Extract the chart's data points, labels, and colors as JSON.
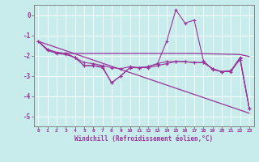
{
  "bg_color": "#c8ecec",
  "line_color": "#993399",
  "grid_color": "#ffffff",
  "xlim": [
    -0.5,
    23.5
  ],
  "ylim": [
    -5.5,
    0.5
  ],
  "yticks": [
    0,
    -1,
    -2,
    -3,
    -4,
    -5
  ],
  "xticks": [
    0,
    1,
    2,
    3,
    4,
    5,
    6,
    7,
    8,
    9,
    10,
    11,
    12,
    13,
    14,
    15,
    16,
    17,
    18,
    19,
    20,
    21,
    22,
    23
  ],
  "xlabel": "Windchill (Refroidissement éolien,°C)",
  "series_main": [
    [
      0,
      -1.3
    ],
    [
      1,
      -1.7
    ],
    [
      2,
      -1.85
    ],
    [
      3,
      -1.9
    ],
    [
      4,
      -2.1
    ],
    [
      5,
      -2.5
    ],
    [
      6,
      -2.5
    ],
    [
      7,
      -2.55
    ],
    [
      8,
      -3.35
    ],
    [
      9,
      -3.0
    ],
    [
      10,
      -2.6
    ],
    [
      11,
      -2.6
    ],
    [
      12,
      -2.55
    ],
    [
      13,
      -2.4
    ],
    [
      14,
      -1.3
    ],
    [
      15,
      0.25
    ],
    [
      16,
      -0.4
    ],
    [
      17,
      -0.25
    ],
    [
      18,
      -2.25
    ],
    [
      19,
      -2.7
    ],
    [
      20,
      -2.8
    ],
    [
      21,
      -2.8
    ],
    [
      22,
      -2.15
    ],
    [
      23,
      -4.6
    ]
  ],
  "series_diag": [
    [
      0,
      -1.3
    ],
    [
      23,
      -4.85
    ]
  ],
  "series_flat": [
    [
      0,
      -1.3
    ],
    [
      1,
      -1.7
    ],
    [
      2,
      -1.85
    ],
    [
      3,
      -1.9
    ],
    [
      7,
      -1.9
    ],
    [
      8,
      -1.9
    ],
    [
      17,
      -1.9
    ],
    [
      22,
      -1.95
    ],
    [
      23,
      -2.05
    ]
  ],
  "series_mid": [
    [
      0,
      -1.3
    ],
    [
      1,
      -1.75
    ],
    [
      2,
      -1.9
    ],
    [
      3,
      -1.95
    ],
    [
      4,
      -2.1
    ],
    [
      5,
      -2.35
    ],
    [
      6,
      -2.4
    ],
    [
      7,
      -2.5
    ],
    [
      8,
      -2.6
    ],
    [
      9,
      -2.65
    ],
    [
      10,
      -2.55
    ],
    [
      11,
      -2.6
    ],
    [
      12,
      -2.6
    ],
    [
      13,
      -2.5
    ],
    [
      14,
      -2.4
    ],
    [
      15,
      -2.3
    ],
    [
      16,
      -2.3
    ],
    [
      17,
      -2.35
    ],
    [
      18,
      -2.35
    ],
    [
      19,
      -2.65
    ],
    [
      20,
      -2.8
    ],
    [
      21,
      -2.75
    ],
    [
      22,
      -2.2
    ],
    [
      23,
      -4.6
    ]
  ],
  "series_v2": [
    [
      3,
      -1.9
    ],
    [
      4,
      -2.1
    ],
    [
      5,
      -2.5
    ],
    [
      6,
      -2.5
    ],
    [
      7,
      -2.6
    ],
    [
      8,
      -3.35
    ],
    [
      9,
      -3.0
    ],
    [
      10,
      -2.6
    ],
    [
      11,
      -2.6
    ],
    [
      12,
      -2.55
    ],
    [
      13,
      -2.4
    ],
    [
      14,
      -2.3
    ],
    [
      15,
      -2.3
    ],
    [
      16,
      -2.3
    ],
    [
      17,
      -2.35
    ],
    [
      18,
      -2.35
    ],
    [
      19,
      -2.65
    ],
    [
      20,
      -2.8
    ],
    [
      21,
      -2.75
    ],
    [
      22,
      -2.1
    ],
    [
      23,
      -4.6
    ]
  ]
}
